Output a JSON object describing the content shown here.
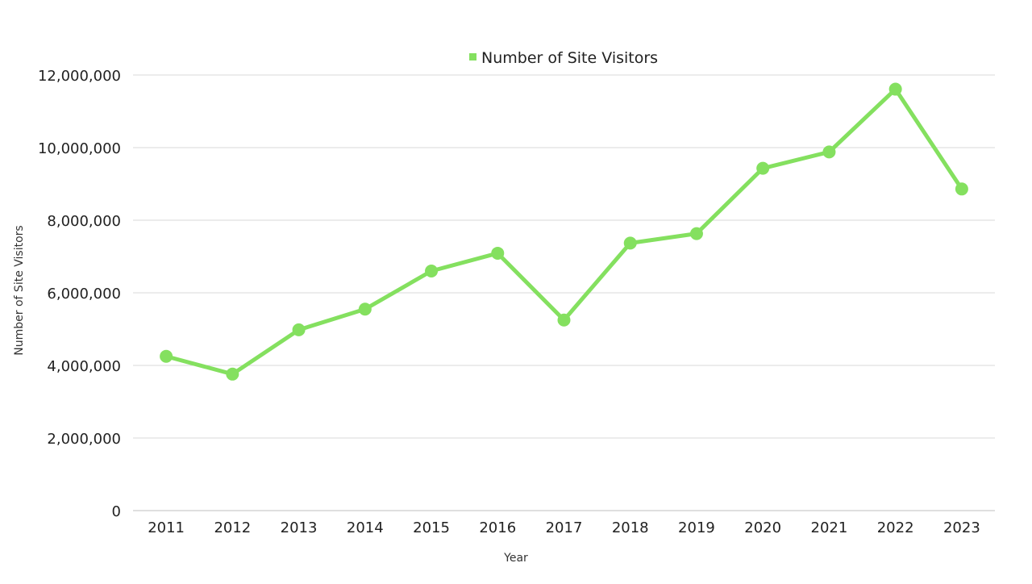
{
  "chart_data": {
    "type": "line",
    "title": "",
    "xlabel": "Year",
    "ylabel": "Number of Site Visitors",
    "categories": [
      "2011",
      "2012",
      "2013",
      "2014",
      "2015",
      "2016",
      "2017",
      "2018",
      "2019",
      "2020",
      "2021",
      "2022",
      "2023"
    ],
    "series": [
      {
        "name": "Number of Site Visitors",
        "color": "#84e05f",
        "values": [
          4250000,
          3760000,
          4980000,
          5550000,
          6600000,
          7090000,
          5250000,
          7370000,
          7630000,
          9430000,
          9880000,
          11610000,
          8860000
        ]
      }
    ],
    "ylim": [
      0,
      12000000
    ],
    "yticks": [
      0,
      2000000,
      4000000,
      6000000,
      8000000,
      10000000,
      12000000
    ],
    "ytick_labels": [
      "0",
      "2,000,000",
      "4,000,000",
      "6,000,000",
      "8,000,000",
      "10,000,000",
      "12,000,000"
    ],
    "grid": true,
    "legend_position": "top-center"
  }
}
